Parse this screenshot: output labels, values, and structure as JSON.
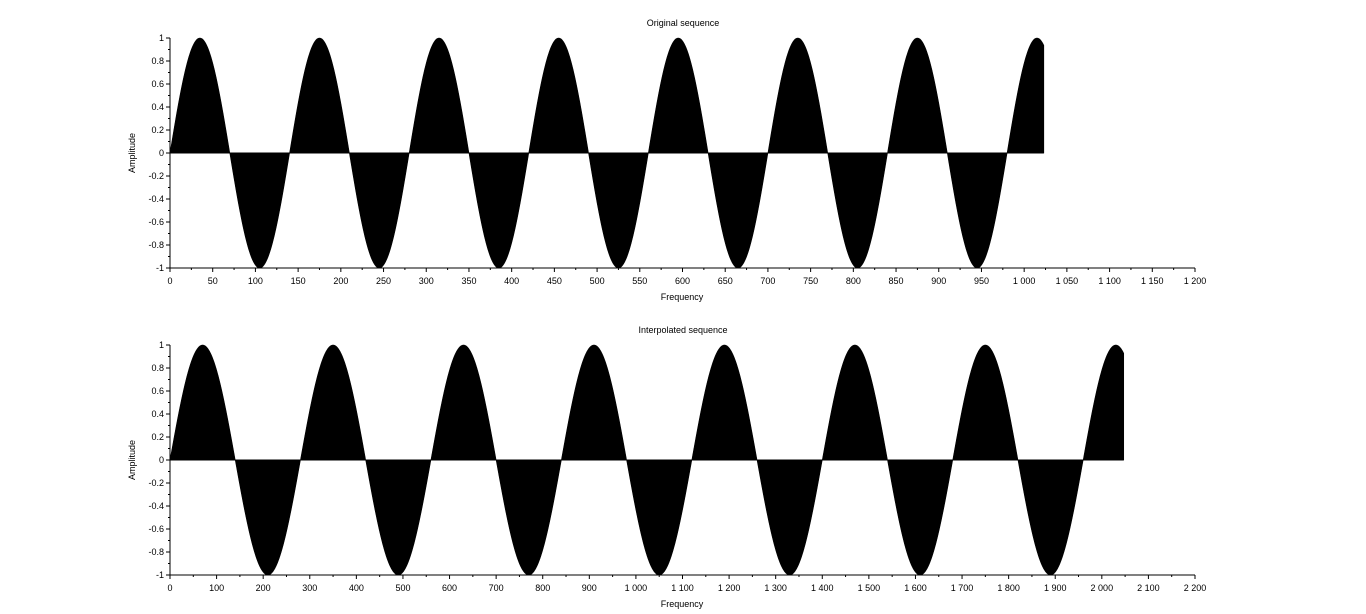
{
  "chart_data": [
    {
      "type": "area",
      "title": "Original sequence",
      "xlabel": "Frequency",
      "ylabel": "Amplitude",
      "xlim": [
        0,
        1200
      ],
      "ylim": [
        -1,
        1
      ],
      "x_ticks": [
        0,
        50,
        100,
        150,
        200,
        250,
        300,
        350,
        400,
        450,
        500,
        550,
        600,
        650,
        700,
        750,
        800,
        850,
        900,
        950,
        1000,
        1050,
        1100,
        1150,
        1200
      ],
      "x_tick_labels": [
        "0",
        "50",
        "100",
        "150",
        "200",
        "250",
        "300",
        "350",
        "400",
        "450",
        "500",
        "550",
        "600",
        "650",
        "700",
        "750",
        "800",
        "850",
        "900",
        "950",
        "1 000",
        "1 050",
        "1 100",
        "1 150",
        "1 200"
      ],
      "y_ticks": [
        -1,
        -0.8,
        -0.6,
        -0.4,
        -0.2,
        0,
        0.2,
        0.4,
        0.6,
        0.8,
        1
      ],
      "y_tick_labels": [
        "-1",
        "-0.8",
        "-0.6",
        "-0.4",
        "-0.2",
        "0",
        "0.2",
        "0.4",
        "0.6",
        "0.8",
        "1"
      ],
      "grid": false,
      "fill_color": "#000000",
      "series": [
        {
          "function": "sin(2*pi*x/140)",
          "x_start": 0,
          "x_end": 1023,
          "amplitude": 1,
          "period": 140
        }
      ]
    },
    {
      "type": "area",
      "title": "Interpolated sequence",
      "xlabel": "Frequency",
      "ylabel": "Amplitude",
      "xlim": [
        0,
        2200
      ],
      "ylim": [
        -1,
        1
      ],
      "x_ticks": [
        0,
        100,
        200,
        300,
        400,
        500,
        600,
        700,
        800,
        900,
        1000,
        1100,
        1200,
        1300,
        1400,
        1500,
        1600,
        1700,
        1800,
        1900,
        2000,
        2100,
        2200
      ],
      "x_tick_labels": [
        "0",
        "100",
        "200",
        "300",
        "400",
        "500",
        "600",
        "700",
        "800",
        "900",
        "1 000",
        "1 100",
        "1 200",
        "1 300",
        "1 400",
        "1 500",
        "1 600",
        "1 700",
        "1 800",
        "1 900",
        "2 000",
        "2 100",
        "2 200"
      ],
      "y_ticks": [
        -1,
        -0.8,
        -0.6,
        -0.4,
        -0.2,
        0,
        0.2,
        0.4,
        0.6,
        0.8,
        1
      ],
      "y_tick_labels": [
        "-1",
        "-0.8",
        "-0.6",
        "-0.4",
        "-0.2",
        "0",
        "0.2",
        "0.4",
        "0.6",
        "0.8",
        "1"
      ],
      "grid": false,
      "fill_color": "#000000",
      "series": [
        {
          "function": "sin(2*pi*x/280)",
          "x_start": 0,
          "x_end": 2047,
          "amplitude": 1,
          "period": 280
        }
      ]
    }
  ]
}
